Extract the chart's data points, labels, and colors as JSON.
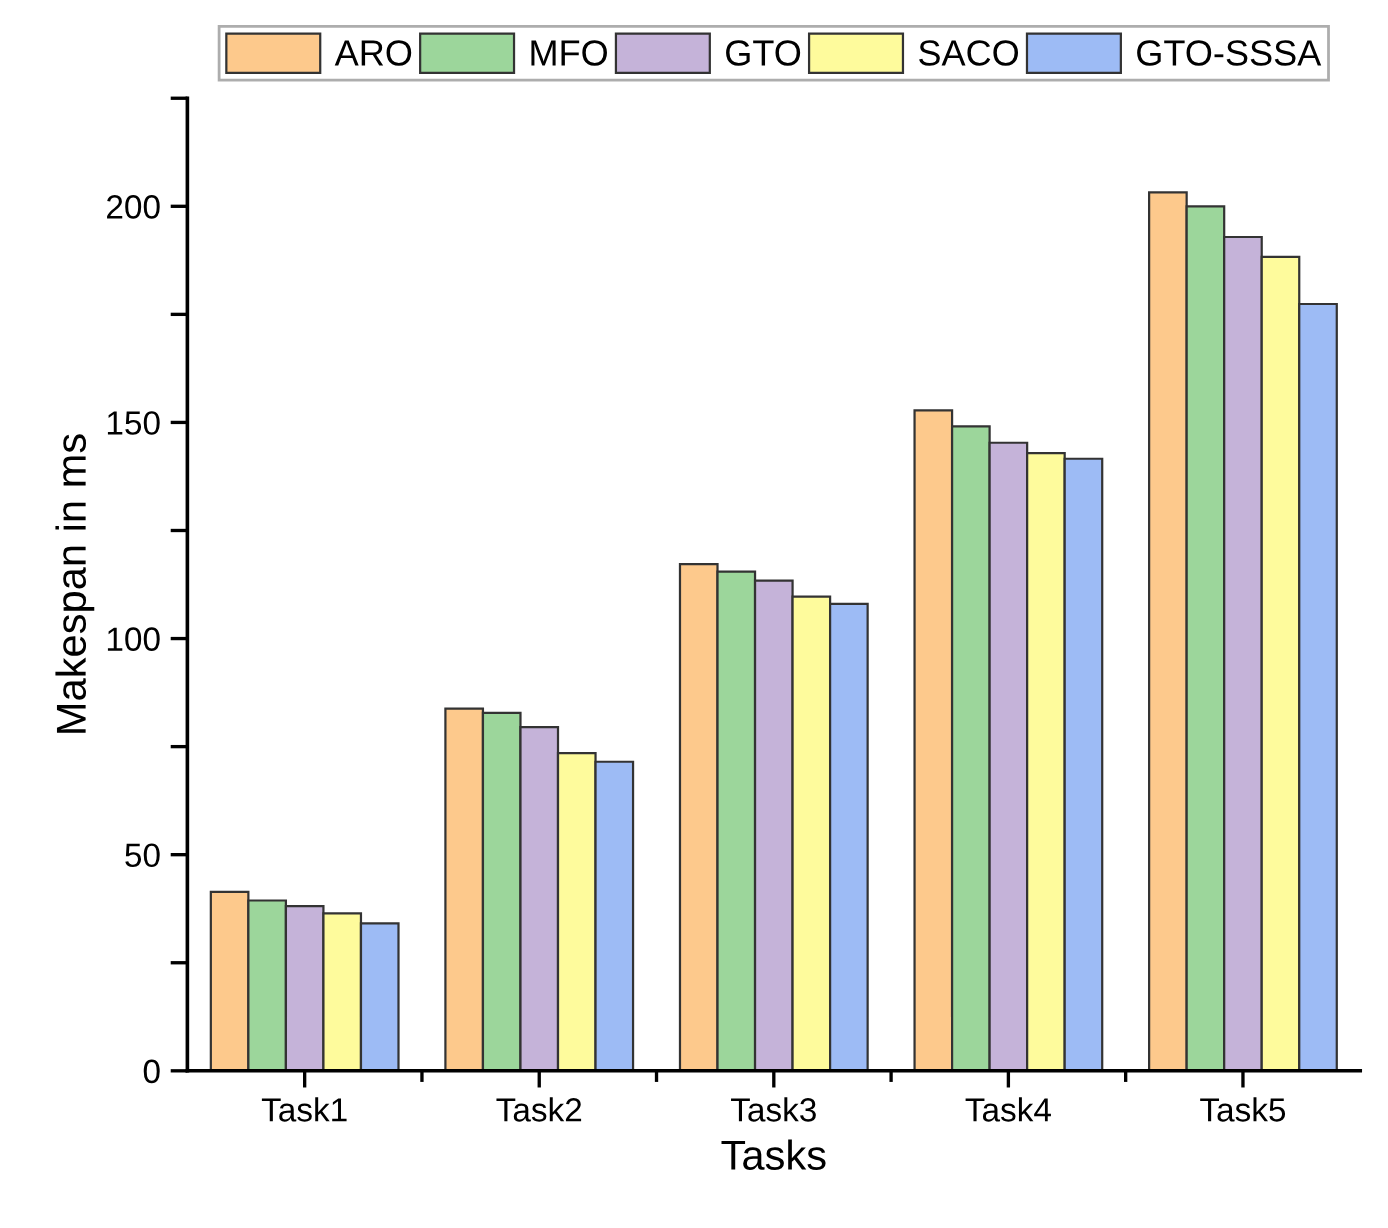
{
  "chart_data": {
    "type": "bar",
    "xlabel": "Tasks",
    "ylabel": "Makespan in ms",
    "categories": [
      "Task1",
      "Task2",
      "Task3",
      "Task4",
      "Task5"
    ],
    "series": [
      {
        "name": "ARO",
        "color": "#fdc98c",
        "values": [
          41.4,
          83.8,
          117.2,
          152.8,
          203.2
        ]
      },
      {
        "name": "MFO",
        "color": "#9cd69b",
        "values": [
          39.4,
          82.8,
          115.5,
          149.1,
          200.0
        ]
      },
      {
        "name": "GTO",
        "color": "#c5b3d9",
        "values": [
          38.1,
          79.5,
          113.4,
          145.3,
          192.9
        ]
      },
      {
        "name": "SACO",
        "color": "#fefb9c",
        "values": [
          36.4,
          73.5,
          109.7,
          142.9,
          188.3
        ]
      },
      {
        "name": "GTO-SSSA",
        "color": "#9dbbf5",
        "values": [
          34.1,
          71.5,
          108.0,
          141.6,
          177.4
        ]
      }
    ],
    "ylim": [
      0,
      225
    ],
    "yticks": [
      0,
      {
        "value": 25,
        "label": null
      },
      50,
      {
        "value": 75,
        "label": null
      },
      100,
      {
        "value": 125,
        "label": null
      },
      150,
      {
        "value": 175,
        "label": null
      },
      200,
      {
        "value": 225,
        "label": null
      }
    ],
    "grid": false,
    "legend": "top"
  }
}
